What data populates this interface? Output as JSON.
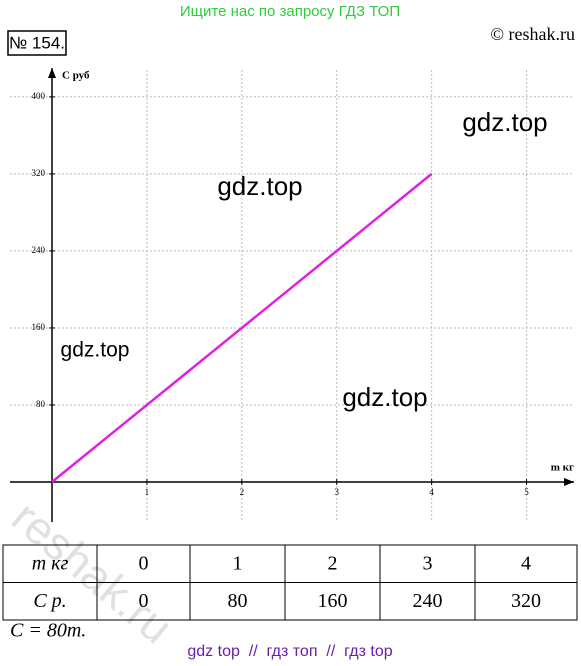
{
  "banner": "Ищите нас по запросу ГДЗ ТОП",
  "problem": "№ 154.",
  "copyright": "© reshak.ru",
  "watermarks": [
    "gdz.top",
    "gdz.top",
    "gdz.top",
    "gdz.top",
    "reshak.ru"
  ],
  "chart_data": {
    "type": "line",
    "y_label": "С руб",
    "x_label": "m кг",
    "x": [
      0,
      4
    ],
    "series": [
      {
        "color": "#e020e0",
        "values": [
          0,
          320
        ]
      }
    ],
    "xlim": [
      0,
      5.5
    ],
    "ylim": [
      0,
      430
    ],
    "xticks": [
      1,
      2,
      3,
      4,
      5
    ],
    "yticks": [
      80,
      160,
      240,
      320,
      400
    ],
    "grid": true
  },
  "table": {
    "rows": [
      [
        "m кг",
        0,
        1,
        2,
        3,
        4
      ],
      [
        "C р.",
        0,
        80,
        160,
        240,
        320
      ]
    ]
  },
  "formula": "C = 80m.",
  "footer": "gdz top  //  гдз топ  //  гдз top"
}
